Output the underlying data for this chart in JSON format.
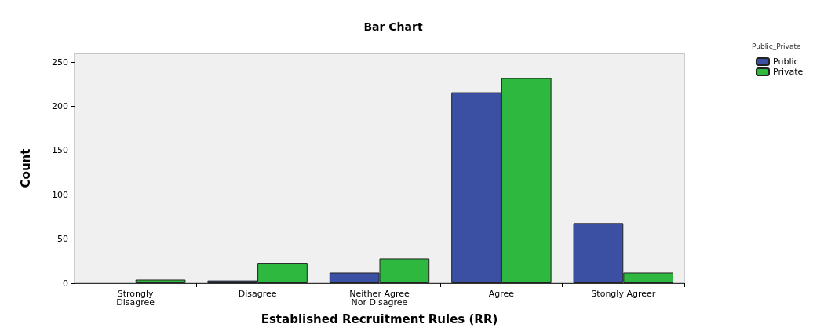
{
  "chart_data": {
    "type": "bar",
    "title": "Bar Chart",
    "xlabel": "Established Recruitment Rules (RR)",
    "ylabel": "Count",
    "legend_title": "Public_Private",
    "categories": [
      "Strongly\nDisagree",
      "Disagree",
      "Neither Agree\nNor Disagree",
      "Agree",
      "Stongly Agreer"
    ],
    "series": [
      {
        "name": "Public",
        "color": "#3b50a3",
        "values": [
          null,
          3,
          12,
          216,
          68
        ]
      },
      {
        "name": "Private",
        "color": "#2eb840",
        "values": [
          4,
          23,
          28,
          232,
          12
        ]
      }
    ],
    "ylim": [
      0,
      260
    ],
    "yticks": [
      0,
      50,
      100,
      150,
      200,
      250
    ],
    "grid": false,
    "legend": "top right"
  }
}
